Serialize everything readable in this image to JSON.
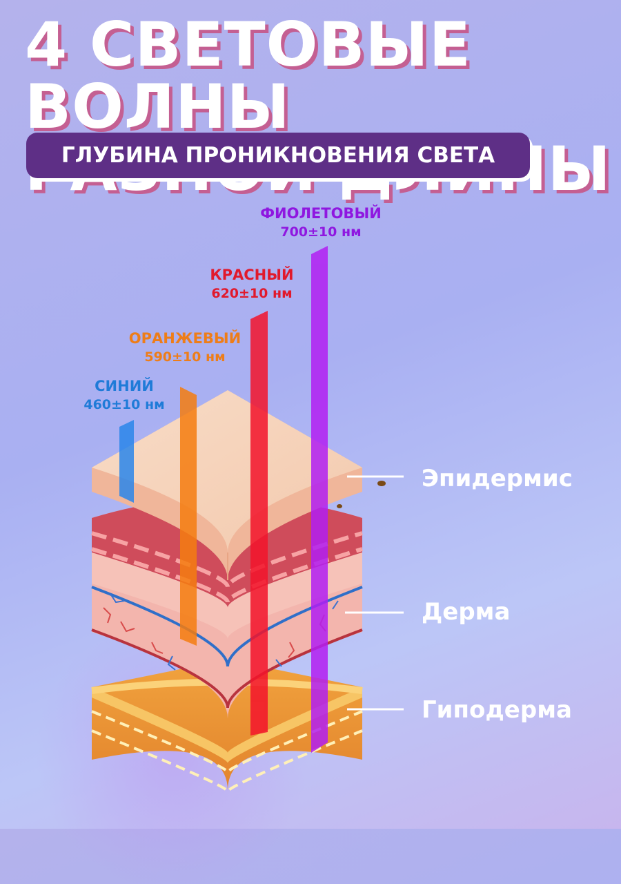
{
  "title": {
    "line1": "4 СВЕТОВЫЕ ВОЛНЫ",
    "line2": "РАЗНОЙ ДЛИНЫ"
  },
  "subtitle": "ГЛУБИНА ПРОНИКНОВЕНИЯ СВЕТА",
  "waves": [
    {
      "name": "СИНИЙ",
      "wavelength": "460±10 нм",
      "color": "#1f7bd8",
      "depth_layer": "Эпидермис"
    },
    {
      "name": "ОРАНЖЕВЫЙ",
      "wavelength": "590±10 нм",
      "color": "#ee7d18",
      "depth_layer": "Дерма"
    },
    {
      "name": "КРАСНЫЙ",
      "wavelength": "620±10 нм",
      "color": "#e1192c",
      "depth_layer": "Дерма"
    },
    {
      "name": "ФИОЛЕТОВЫЙ",
      "wavelength": "700±10 нм",
      "color": "#a020f0",
      "depth_layer": "Гиподерма"
    }
  ],
  "layers": [
    {
      "name": "Эпидермис"
    },
    {
      "name": "Дерма"
    },
    {
      "name": "Гиподерма"
    }
  ]
}
